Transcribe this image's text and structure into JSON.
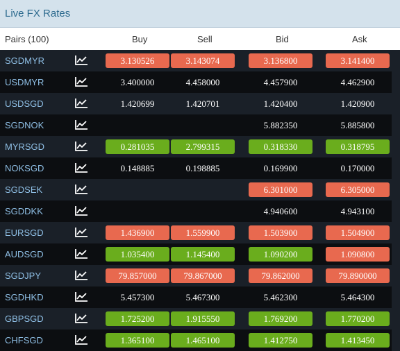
{
  "title": "Live FX Rates",
  "headers": {
    "pairs": "Pairs (100)",
    "buy": "Buy",
    "sell": "Sell",
    "bid": "Bid",
    "ask": "Ask"
  },
  "colors": {
    "up": "#6aad1d",
    "down": "#e8694f",
    "pair_text": "#8fbfe5"
  },
  "rows": [
    {
      "pair": "SGDMYR",
      "buy": "3.130526",
      "buy_s": "down",
      "sell": "3.143074",
      "sell_s": "down",
      "bid": "3.136800",
      "bid_s": "down",
      "ask": "3.141400",
      "ask_s": "down"
    },
    {
      "pair": "USDMYR",
      "buy": "3.400000",
      "buy_s": "",
      "sell": "4.458000",
      "sell_s": "",
      "bid": "4.457900",
      "bid_s": "",
      "ask": "4.462900",
      "ask_s": ""
    },
    {
      "pair": "USDSGD",
      "buy": "1.420699",
      "buy_s": "",
      "sell": "1.420701",
      "sell_s": "",
      "bid": "1.420400",
      "bid_s": "",
      "ask": "1.420900",
      "ask_s": ""
    },
    {
      "pair": "SGDNOK",
      "buy": "",
      "buy_s": "",
      "sell": "",
      "sell_s": "",
      "bid": "5.882350",
      "bid_s": "",
      "ask": "5.885800",
      "ask_s": ""
    },
    {
      "pair": "MYRSGD",
      "buy": "0.281035",
      "buy_s": "up",
      "sell": "2.799315",
      "sell_s": "up",
      "bid": "0.318330",
      "bid_s": "up",
      "ask": "0.318795",
      "ask_s": "up"
    },
    {
      "pair": "NOKSGD",
      "buy": "0.148885",
      "buy_s": "",
      "sell": "0.198885",
      "sell_s": "",
      "bid": "0.169900",
      "bid_s": "",
      "ask": "0.170000",
      "ask_s": ""
    },
    {
      "pair": "SGDSEK",
      "buy": "",
      "buy_s": "",
      "sell": "",
      "sell_s": "",
      "bid": "6.301000",
      "bid_s": "down",
      "ask": "6.305000",
      "ask_s": "down"
    },
    {
      "pair": "SGDDKK",
      "buy": "",
      "buy_s": "",
      "sell": "",
      "sell_s": "",
      "bid": "4.940600",
      "bid_s": "",
      "ask": "4.943100",
      "ask_s": ""
    },
    {
      "pair": "EURSGD",
      "buy": "1.436900",
      "buy_s": "down",
      "sell": "1.559900",
      "sell_s": "down",
      "bid": "1.503900",
      "bid_s": "down",
      "ask": "1.504900",
      "ask_s": "down"
    },
    {
      "pair": "AUDSGD",
      "buy": "1.035400",
      "buy_s": "up",
      "sell": "1.145400",
      "sell_s": "up",
      "bid": "1.090200",
      "bid_s": "up",
      "ask": "1.090800",
      "ask_s": "down"
    },
    {
      "pair": "SGDJPY",
      "buy": "79.857000",
      "buy_s": "down",
      "sell": "79.867000",
      "sell_s": "down",
      "bid": "79.862000",
      "bid_s": "down",
      "ask": "79.890000",
      "ask_s": "down"
    },
    {
      "pair": "SGDHKD",
      "buy": "5.457300",
      "buy_s": "",
      "sell": "5.467300",
      "sell_s": "",
      "bid": "5.462300",
      "bid_s": "",
      "ask": "5.464300",
      "ask_s": ""
    },
    {
      "pair": "GBPSGD",
      "buy": "1.725200",
      "buy_s": "up",
      "sell": "1.915550",
      "sell_s": "up",
      "bid": "1.769200",
      "bid_s": "up",
      "ask": "1.770200",
      "ask_s": "up"
    },
    {
      "pair": "CHFSGD",
      "buy": "1.365100",
      "buy_s": "up",
      "sell": "1.465100",
      "sell_s": "up",
      "bid": "1.412750",
      "bid_s": "up",
      "ask": "1.413450",
      "ask_s": "up"
    }
  ]
}
